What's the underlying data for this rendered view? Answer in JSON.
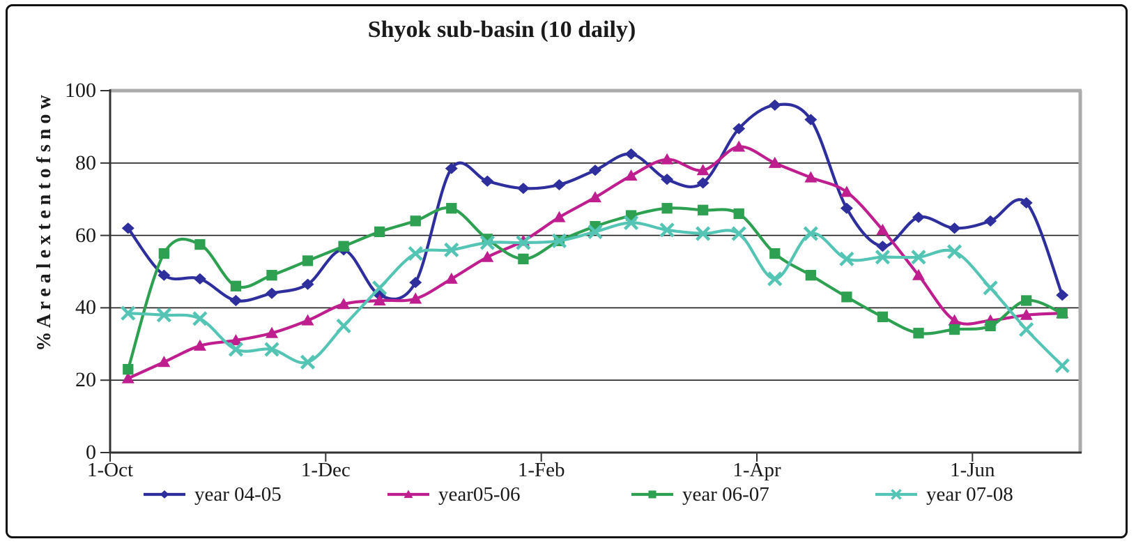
{
  "title": "Shyok sub-basin (10 daily)",
  "y_axis": {
    "title": "% A r e a l  e x t e n t  o f  s n o w",
    "ticks": [
      0,
      20,
      40,
      60,
      80,
      100
    ],
    "min": 0,
    "max": 100,
    "gridlines": true
  },
  "x_axis": {
    "tick_labels": [
      "1-Oct",
      "1-Dec",
      "1-Feb",
      "1-Apr",
      "1-Jun"
    ],
    "ticks_every_n_points": 6,
    "n_points": 27
  },
  "legend": {
    "position": "bottom"
  },
  "chart_data": {
    "type": "line",
    "smoothed": true,
    "title": "Shyok sub-basin (10 daily)",
    "xlabel": "",
    "ylabel": "% Areal extent of snow",
    "ylim": [
      0,
      100
    ],
    "x_description": "10-day periods from 1-Oct to late June; labeled ticks every 6 periods",
    "x_tick_labels": [
      "1-Oct",
      "1-Dec",
      "1-Feb",
      "1-Apr",
      "1-Jun"
    ],
    "n_points": 27,
    "series": [
      {
        "name": "year 04-05",
        "color": "#2E2E9C",
        "marker": "diamond",
        "values": [
          62,
          49,
          48,
          42,
          44,
          46.5,
          56,
          43.5,
          47,
          78.5,
          75,
          73,
          74,
          78,
          82.5,
          75.5,
          74.5,
          89.5,
          96,
          92,
          67.5,
          57,
          65,
          62,
          64,
          69,
          43.5
        ]
      },
      {
        "name": "year05-06",
        "color": "#BE1E8E",
        "marker": "triangle",
        "values": [
          20.5,
          25,
          29.5,
          31,
          33,
          36.5,
          41,
          42,
          42.5,
          48,
          54,
          58.5,
          65,
          70.5,
          76.5,
          81,
          78,
          84.5,
          80,
          76,
          72,
          61.5,
          49,
          36.5,
          36.5,
          38,
          38.5
        ]
      },
      {
        "name": "year 06-07",
        "color": "#2EA051",
        "marker": "square",
        "values": [
          23,
          55,
          57.5,
          46,
          49,
          53,
          57,
          61,
          64,
          67.5,
          59,
          53.5,
          58.5,
          62.5,
          65.5,
          67.5,
          67,
          66,
          55,
          49,
          43,
          37.5,
          33,
          34,
          35,
          42,
          38.5
        ]
      },
      {
        "name": "year 07-08",
        "color": "#54C4B4",
        "marker": "x",
        "values": [
          38.5,
          38,
          37,
          28.5,
          28.5,
          25,
          35,
          45.5,
          55,
          56,
          58,
          58,
          58.5,
          61,
          63.5,
          61.5,
          60.5,
          60.5,
          48,
          60.5,
          53.5,
          54,
          54,
          55.5,
          45.5,
          34,
          24
        ]
      }
    ]
  }
}
